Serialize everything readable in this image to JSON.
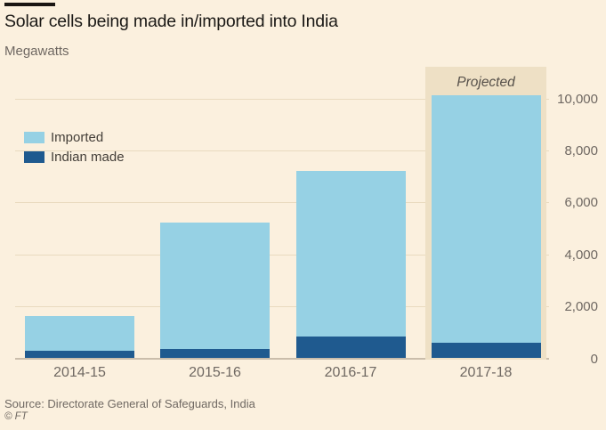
{
  "title": "Solar cells being made in/imported into India",
  "subtitle": "Megawatts",
  "source": "Source: Directorate General of Safeguards, India",
  "copyright": "© FT",
  "colors": {
    "background": "#fbf0de",
    "projected_band": "#eee0c5",
    "imported": "#96d1e4",
    "indian_made": "#1f5a8f",
    "gridline": "#e9dabf",
    "axis_line": "#cabdab",
    "text_muted": "#6f6862",
    "title_text": "#1b1916"
  },
  "legend": [
    {
      "label": "Imported",
      "color": "#96d1e4"
    },
    {
      "label": "Indian made",
      "color": "#1f5a8f"
    }
  ],
  "chart_data": {
    "type": "bar",
    "stacked": true,
    "title": "Solar cells being made in/imported into India",
    "ylabel": "Megawatts",
    "categories": [
      "2014-15",
      "2015-16",
      "2016-17",
      "2017-18"
    ],
    "series": [
      {
        "name": "Indian made",
        "color": "#1f5a8f",
        "values": [
          280,
          340,
          820,
          580
        ]
      },
      {
        "name": "Imported",
        "color": "#96d1e4",
        "values": [
          1320,
          4860,
          6380,
          9520
        ]
      }
    ],
    "totals": [
      1600,
      5200,
      7200,
      10100
    ],
    "yticks": [
      0,
      2000,
      4000,
      6000,
      8000,
      10000
    ],
    "ytick_labels": [
      "0",
      "2,000",
      "4,000",
      "6,000",
      "8,000",
      "10,000"
    ],
    "ylim": [
      0,
      10200
    ],
    "grid": true,
    "legend_position": "upper-left",
    "projected_label": "Projected",
    "projected_category": "2017-18"
  }
}
